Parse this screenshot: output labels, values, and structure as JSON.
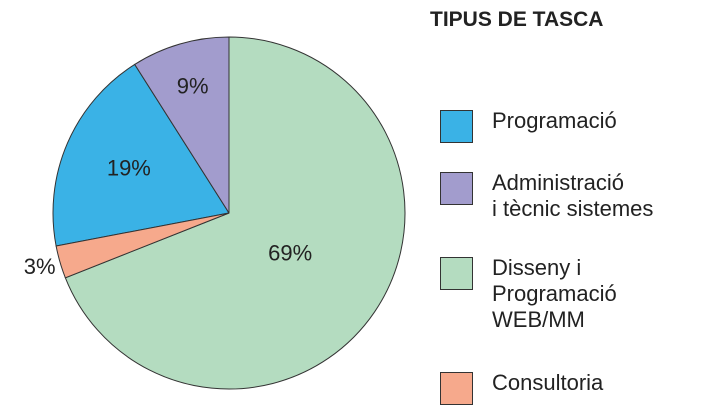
{
  "chart_data": {
    "type": "pie",
    "legend_title": "TIPUS DE TASCA",
    "categories": [
      "Programació",
      "Administració\ni tècnic sistemes",
      "Disseny i\nProgramació\nWEB/MM",
      "Consultoria"
    ],
    "values": [
      19,
      9,
      69,
      3
    ],
    "value_labels": [
      "19%",
      "9%",
      "69%",
      "3%"
    ],
    "colors": [
      "#3ab2e6",
      "#a29ccd",
      "#b4dcc0",
      "#f6a98c"
    ],
    "legend": "right"
  }
}
